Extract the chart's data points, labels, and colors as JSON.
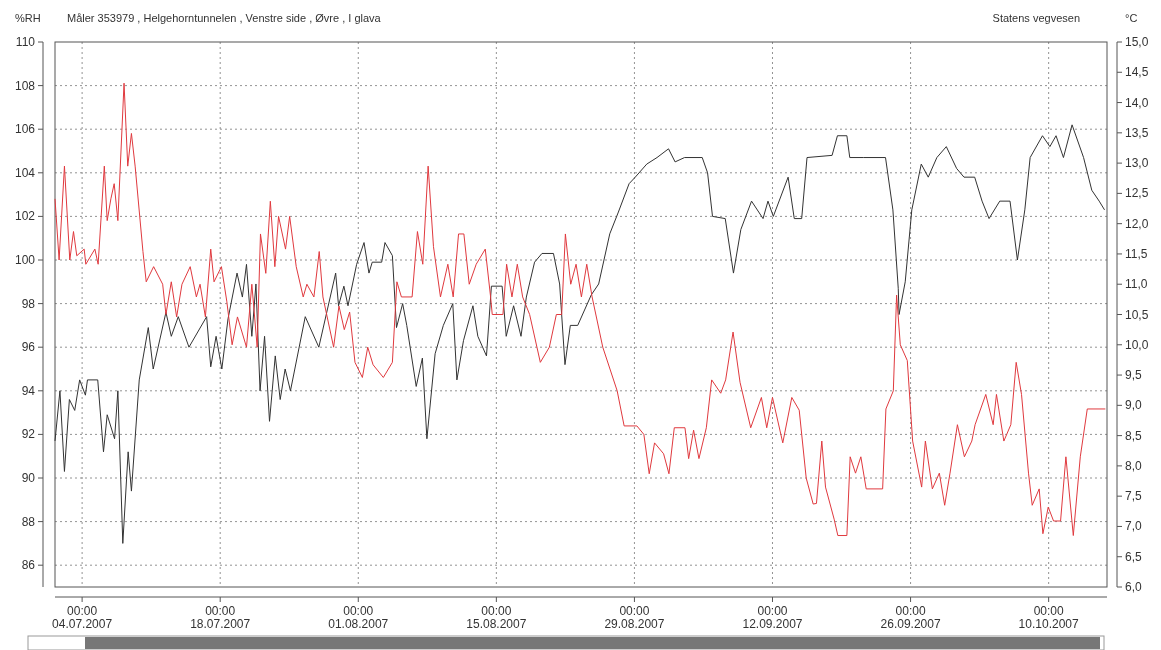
{
  "chart_data": {
    "type": "line",
    "title": "Måler 353979 , Helgehorntunnelen , Venstre side , Øvre , I glava",
    "ylabel": "%RH",
    "y2label": "°C",
    "annotations": [
      "Statens vegvesen"
    ],
    "xlim": [
      "2007-07-01T06:00",
      "2007-10-15T22:00"
    ],
    "xticks": [
      {
        "value": "2007-07-04",
        "label": "00:00\n04.07.2007"
      },
      {
        "value": "2007-07-18",
        "label": "00:00\n18.07.2007"
      },
      {
        "value": "2007-08-01",
        "label": "00:00\n01.08.2007"
      },
      {
        "value": "2007-08-15",
        "label": "00:00\n15.08.2007"
      },
      {
        "value": "2007-08-29",
        "label": "00:00\n29.08.2007"
      },
      {
        "value": "2007-09-12",
        "label": "00:00\n12.09.2007"
      },
      {
        "value": "2007-09-26",
        "label": "00:00\n26.09.2007"
      },
      {
        "value": "2007-10-10",
        "label": "00:00\n10.10.2007"
      }
    ],
    "ylim": [
      85,
      110
    ],
    "yticks": [
      86,
      88,
      90,
      92,
      94,
      96,
      98,
      100,
      102,
      104,
      106,
      108,
      110
    ],
    "y2lim": [
      6,
      15
    ],
    "y2ticks": [
      {
        "value": 6,
        "label": "6,0"
      },
      {
        "value": 6.5,
        "label": "6,5"
      },
      {
        "value": 7,
        "label": "7,0"
      },
      {
        "value": 7.5,
        "label": "7,5"
      },
      {
        "value": 8,
        "label": "8,0"
      },
      {
        "value": 8.5,
        "label": "8,5"
      },
      {
        "value": 9,
        "label": "9,0"
      },
      {
        "value": 9.5,
        "label": "9,5"
      },
      {
        "value": 10,
        "label": "10,0"
      },
      {
        "value": 10.5,
        "label": "10,5"
      },
      {
        "value": 11,
        "label": "11,0"
      },
      {
        "value": 11.5,
        "label": "11,5"
      },
      {
        "value": 12,
        "label": "12,0"
      },
      {
        "value": 12.5,
        "label": "12,5"
      },
      {
        "value": 13,
        "label": "13,0"
      },
      {
        "value": 13.5,
        "label": "13,5"
      },
      {
        "value": 14,
        "label": "14,0"
      },
      {
        "value": 14.5,
        "label": "14,5"
      },
      {
        "value": 15,
        "label": "15,0"
      }
    ],
    "grid": true,
    "line_style": "solid",
    "marker": "none",
    "series": [
      {
        "color": "#333333",
        "x": [
          "2007-07-01T06:00",
          "2007-07-01T18:00",
          "2007-07-02T05:00",
          "2007-07-02T17:00",
          "2007-07-03T06:00",
          "2007-07-03T18:00",
          "2007-07-04T08:00",
          "2007-07-04T13:00",
          "2007-07-05T14:00",
          "2007-07-06T04:00",
          "2007-07-06T13:00",
          "2007-07-07T07:00",
          "2007-07-07T15:00",
          "2007-07-08T03:00",
          "2007-07-08T16:00",
          "2007-07-09T00:00",
          "2007-07-09T19:00",
          "2007-07-10T17:00",
          "2007-07-11T05:00",
          "2007-07-12T12:00",
          "2007-07-13T01:00",
          "2007-07-13T18:00",
          "2007-07-14T20:00",
          "2007-07-16T15:00",
          "2007-07-17T01:00",
          "2007-07-17T14:00",
          "2007-07-18T04:00",
          "2007-07-18T19:00",
          "2007-07-19T17:00",
          "2007-07-20T06:00",
          "2007-07-20T16:00",
          "2007-07-21T05:00",
          "2007-07-21T15:00",
          "2007-07-22T01:00",
          "2007-07-22T12:00",
          "2007-07-23T00:00",
          "2007-07-23T14:00",
          "2007-07-24T02:00",
          "2007-07-24T14:00",
          "2007-07-25T03:00",
          "2007-07-26T15:00",
          "2007-07-28T00:00",
          "2007-07-29T17:00",
          "2007-07-30T00:00",
          "2007-07-30T13:00",
          "2007-07-30T23:00",
          "2007-07-31T20:00",
          "2007-08-01T14:00",
          "2007-08-02T02:00",
          "2007-08-02T10:00",
          "2007-08-03T09:00",
          "2007-08-03T17:00",
          "2007-08-04T11:00",
          "2007-08-04T21:00",
          "2007-08-05T12:00",
          "2007-08-05T22:00",
          "2007-08-06T21:00",
          "2007-08-07T12:00",
          "2007-08-07T23:00",
          "2007-08-08T19:00",
          "2007-08-09T15:00",
          "2007-08-10T14:00",
          "2007-08-11T00:00",
          "2007-08-11T16:00",
          "2007-08-12T15:00",
          "2007-08-13T03:00",
          "2007-08-14T00:00",
          "2007-08-14T12:00",
          "2007-08-15T14:00",
          "2007-08-16T00:00",
          "2007-08-16T18:00",
          "2007-08-17T12:00",
          "2007-08-18T01:00",
          "2007-08-18T21:00",
          "2007-08-19T15:00",
          "2007-08-20T19:00",
          "2007-08-21T10:00",
          "2007-08-21T23:00",
          "2007-08-22T12:00",
          "2007-08-23T06:00",
          "2007-08-24T15:00",
          "2007-08-25T09:00",
          "2007-08-26T12:00",
          "2007-08-27T09:00",
          "2007-08-28T11:00",
          "2007-08-29T02:00",
          "2007-08-30T06:00",
          "2007-08-31T07:00",
          "2007-09-01T11:00",
          "2007-09-02T03:00",
          "2007-09-03T02:00",
          "2007-09-04T21:00",
          "2007-09-05T10:00",
          "2007-09-05T22:00",
          "2007-09-07T05:00",
          "2007-09-08T01:00",
          "2007-09-08T19:00",
          "2007-09-09T21:00",
          "2007-09-11T01:00",
          "2007-09-11T13:00",
          "2007-09-12T02:00",
          "2007-09-13T14:00",
          "2007-09-14T05:00",
          "2007-09-14T23:00",
          "2007-09-15T12:00",
          "2007-09-18T01:00",
          "2007-09-18T14:00",
          "2007-09-19T13:00",
          "2007-09-19T20:00",
          "2007-09-21T06:00",
          "2007-09-23T11:00",
          "2007-09-24T05:00",
          "2007-09-24T18:00",
          "2007-09-24T20:00",
          "2007-09-25T11:00",
          "2007-09-26T03:00",
          "2007-09-27T02:00",
          "2007-09-27T19:00",
          "2007-09-28T16:00",
          "2007-09-29T15:00",
          "2007-09-30T16:00",
          "2007-10-01T10:00",
          "2007-10-02T12:00",
          "2007-10-03T06:00",
          "2007-10-03T23:00",
          "2007-10-05T01:00",
          "2007-10-06T02:00",
          "2007-10-06T20:00",
          "2007-10-07T14:00",
          "2007-10-08T03:00",
          "2007-10-09T09:00",
          "2007-10-10T03:00",
          "2007-10-10T18:00",
          "2007-10-11T12:00",
          "2007-10-12T09:00",
          "2007-10-13T13:00",
          "2007-10-14T09:00",
          "2007-10-15T03:00",
          "2007-10-15T16:00"
        ],
        "values": [
          91.7,
          94.0,
          90.3,
          93.6,
          93.1,
          94.5,
          93.8,
          94.5,
          94.5,
          91.2,
          92.9,
          91.8,
          94.0,
          87.0,
          91.2,
          89.4,
          94.5,
          96.9,
          95.0,
          97.6,
          96.5,
          97.4,
          96.0,
          97.4,
          95.1,
          96.5,
          95.0,
          97.3,
          99.4,
          98.3,
          99.8,
          96.5,
          98.9,
          94.0,
          96.5,
          92.6,
          95.6,
          93.6,
          95.0,
          94.0,
          97.4,
          96.0,
          99.4,
          97.9,
          98.8,
          97.9,
          99.8,
          100.8,
          99.4,
          99.9,
          99.9,
          100.8,
          100.2,
          96.9,
          98.0,
          97.0,
          94.2,
          95.5,
          91.8,
          95.7,
          97.0,
          98.0,
          94.5,
          96.3,
          97.9,
          96.5,
          95.6,
          98.8,
          98.8,
          96.5,
          97.9,
          96.5,
          98.3,
          99.9,
          100.3,
          100.3,
          98.9,
          95.2,
          97.0,
          97.0,
          98.4,
          98.9,
          101.2,
          102.2,
          103.5,
          103.8,
          104.4,
          104.7,
          105.1,
          104.5,
          104.7,
          104.7,
          104.0,
          102.0,
          101.9,
          99.4,
          101.4,
          102.7,
          101.9,
          102.7,
          102.0,
          103.8,
          101.9,
          101.9,
          104.7,
          104.8,
          105.7,
          105.7,
          104.7,
          104.7,
          104.7,
          102.3,
          98.7,
          97.5,
          99.0,
          102.3,
          104.4,
          103.8,
          104.7,
          105.2,
          104.2,
          103.8,
          103.8,
          102.7,
          101.9,
          102.7,
          102.7,
          100.0,
          102.3,
          104.7,
          105.7,
          105.2,
          105.7,
          104.7,
          106.2,
          104.7,
          103.2,
          102.7,
          102.3
        ]
      },
      {
        "color": "#e0393e",
        "axis": "y2",
        "x": [
          "2007-07-01T06:00",
          "2007-07-01T16:00",
          "2007-07-02T05:00",
          "2007-07-02T18:00",
          "2007-07-03T03:00",
          "2007-07-03T11:00",
          "2007-07-04T05:00",
          "2007-07-04T09:00",
          "2007-07-05T07:00",
          "2007-07-05T15:00",
          "2007-07-06T06:00",
          "2007-07-06T13:00",
          "2007-07-06T22:00",
          "2007-07-07T06:00",
          "2007-07-07T15:00",
          "2007-07-08T06:00",
          "2007-07-08T15:00",
          "2007-07-09T00:00",
          "2007-07-09T09:00",
          "2007-07-10T04:00",
          "2007-07-10T12:00",
          "2007-07-11T06:00",
          "2007-07-12T04:00",
          "2007-07-12T12:00",
          "2007-07-13T01:00",
          "2007-07-13T14:00",
          "2007-07-14T03:00",
          "2007-07-14T23:00",
          "2007-07-15T14:00",
          "2007-07-15T23:00",
          "2007-07-16T12:00",
          "2007-07-17T01:00",
          "2007-07-17T09:00",
          "2007-07-18T03:00",
          "2007-07-18T16:00",
          "2007-07-19T05:00",
          "2007-07-19T18:00",
          "2007-07-20T16:00",
          "2007-07-21T05:00",
          "2007-07-21T18:00",
          "2007-07-22T02:00",
          "2007-07-22T15:00",
          "2007-07-23T02:00",
          "2007-07-23T13:00",
          "2007-07-23T22:00",
          "2007-07-24T15:00",
          "2007-07-25T01:00",
          "2007-07-25T17:00",
          "2007-07-26T10:00",
          "2007-07-26T19:00",
          "2007-07-27T12:00",
          "2007-07-28T01:00",
          "2007-07-28T10:00",
          "2007-07-29T12:00",
          "2007-07-30T01:00",
          "2007-07-30T14:00",
          "2007-07-31T03:00",
          "2007-07-31T16:00",
          "2007-08-01T10:00",
          "2007-08-01T23:00",
          "2007-08-02T12:00",
          "2007-08-03T13:00",
          "2007-08-04T11:00",
          "2007-08-04T22:00",
          "2007-08-05T09:00",
          "2007-08-06T11:00",
          "2007-08-07T00:00",
          "2007-08-07T13:00",
          "2007-08-08T02:00",
          "2007-08-08T15:00",
          "2007-08-09T08:00",
          "2007-08-10T02:00",
          "2007-08-10T15:00",
          "2007-08-11T04:00",
          "2007-08-11T17:00",
          "2007-08-12T06:00",
          "2007-08-12T23:00",
          "2007-08-13T21:00",
          "2007-08-14T10:00",
          "2007-08-14T14:00",
          "2007-08-15T16:00",
          "2007-08-16T01:00",
          "2007-08-16T14:00",
          "2007-08-17T03:00",
          "2007-08-17T16:00",
          "2007-08-18T09:00",
          "2007-08-19T11:00",
          "2007-08-20T09:00",
          "2007-08-21T02:00",
          "2007-08-21T15:00",
          "2007-08-22T00:00",
          "2007-08-22T13:00",
          "2007-08-23T02:00",
          "2007-08-23T15:00",
          "2007-08-24T04:00",
          "2007-08-24T17:00",
          "2007-08-25T19:00",
          "2007-08-27T06:00",
          "2007-08-27T23:00",
          "2007-08-29T06:00",
          "2007-08-29T23:00",
          "2007-08-30T12:00",
          "2007-08-31T01:00",
          "2007-08-31T23:00",
          "2007-09-01T12:00",
          "2007-09-02T01:00",
          "2007-09-03T03:00",
          "2007-09-03T12:00",
          "2007-09-04T00:00",
          "2007-09-04T13:00",
          "2007-09-05T07:00",
          "2007-09-05T20:00",
          "2007-09-06T18:00",
          "2007-09-07T06:00",
          "2007-09-08T00:00",
          "2007-09-08T17:00",
          "2007-09-09T19:00",
          "2007-09-10T21:00",
          "2007-09-11T10:00",
          "2007-09-12T00:00",
          "2007-09-13T01:00",
          "2007-09-13T23:00",
          "2007-09-14T17:00",
          "2007-09-15T10:00",
          "2007-09-16T03:00",
          "2007-09-16T11:00",
          "2007-09-17T00:00",
          "2007-09-17T09:00",
          "2007-09-18T06:00",
          "2007-09-18T15:00",
          "2007-09-19T13:00",
          "2007-09-19T21:00",
          "2007-09-20T10:00",
          "2007-09-20T23:00",
          "2007-09-21T12:00",
          "2007-09-23T04:00",
          "2007-09-23T12:00",
          "2007-09-24T06:00",
          "2007-09-24T14:00",
          "2007-09-24T23:00",
          "2007-09-25T16:00",
          "2007-09-26T05:00",
          "2007-09-27T03:00",
          "2007-09-27T12:00",
          "2007-09-28T05:00",
          "2007-09-28T22:00",
          "2007-09-29T11:00",
          "2007-09-30T00:00",
          "2007-09-30T18:00",
          "2007-10-01T11:00",
          "2007-10-02T05:00",
          "2007-10-02T13:00",
          "2007-10-03T15:00",
          "2007-10-04T09:00",
          "2007-10-04T17:00",
          "2007-10-05T11:00",
          "2007-10-06T04:00",
          "2007-10-06T17:00",
          "2007-10-07T06:00",
          "2007-10-07T23:00",
          "2007-10-08T08:00",
          "2007-10-09T01:00",
          "2007-10-09T10:00",
          "2007-10-09T23:00",
          "2007-10-10T12:00",
          "2007-10-11T05:00",
          "2007-10-11T18:00",
          "2007-10-12T12:00",
          "2007-10-13T05:00",
          "2007-10-13T22:00",
          "2007-10-15T18:00"
        ],
        "values": [
          12.41,
          11.4,
          12.95,
          11.4,
          11.87,
          11.47,
          11.58,
          11.33,
          11.58,
          11.33,
          12.95,
          12.05,
          12.41,
          12.66,
          12.05,
          14.32,
          12.95,
          13.49,
          12.95,
          11.54,
          11.04,
          11.29,
          11.0,
          10.5,
          11.04,
          10.46,
          11.0,
          11.29,
          10.79,
          11.0,
          10.46,
          11.58,
          11.04,
          11.29,
          10.72,
          10.0,
          10.46,
          9.96,
          11.0,
          9.96,
          11.83,
          11.18,
          12.37,
          11.29,
          12.12,
          11.58,
          12.12,
          11.29,
          10.79,
          11.0,
          10.79,
          11.54,
          10.79,
          9.96,
          10.64,
          10.25,
          10.54,
          9.71,
          9.46,
          9.96,
          9.67,
          9.46,
          9.71,
          11.04,
          10.79,
          10.79,
          11.87,
          11.33,
          12.95,
          11.62,
          10.79,
          11.33,
          10.79,
          11.83,
          11.83,
          11.0,
          11.33,
          11.58,
          10.79,
          10.5,
          10.5,
          11.33,
          10.79,
          11.33,
          10.79,
          10.5,
          9.71,
          9.96,
          10.5,
          10.5,
          11.83,
          11.0,
          11.33,
          10.79,
          11.33,
          10.79,
          9.96,
          9.24,
          8.66,
          8.66,
          8.52,
          7.87,
          8.38,
          8.2,
          7.87,
          8.63,
          8.63,
          8.12,
          8.59,
          8.12,
          8.63,
          9.42,
          9.2,
          9.42,
          10.21,
          9.38,
          8.63,
          9.13,
          8.63,
          9.13,
          8.38,
          9.13,
          8.92,
          7.8,
          7.37,
          7.38,
          8.41,
          7.65,
          7.12,
          6.85,
          6.85,
          8.15,
          7.88,
          8.15,
          7.62,
          7.62,
          8.94,
          9.24,
          10.82,
          10.0,
          9.74,
          8.41,
          7.65,
          8.41,
          7.62,
          7.88,
          7.35,
          7.88,
          8.68,
          8.15,
          8.41,
          8.68,
          9.18,
          8.68,
          9.18,
          8.41,
          8.68,
          9.71,
          9.18,
          7.88,
          7.35,
          7.62,
          6.88,
          7.32,
          7.09,
          7.09,
          8.15,
          6.85,
          8.15,
          8.94,
          8.94
        ]
      }
    ]
  }
}
